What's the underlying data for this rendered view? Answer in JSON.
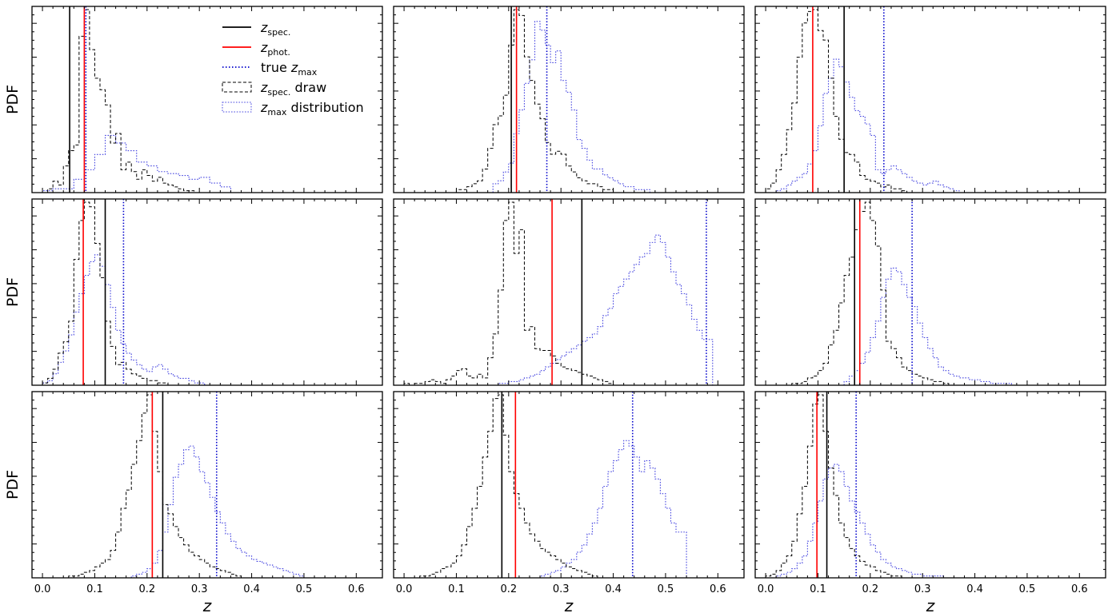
{
  "chart_data": {
    "type": "line",
    "layout": "3x3 grid of panels, shared x axis",
    "x_label": "z",
    "y_label": "PDF",
    "x_range": [
      -0.02,
      0.65
    ],
    "x_ticks": [
      0.0,
      0.1,
      0.2,
      0.3,
      0.4,
      0.5,
      0.6
    ],
    "x_tick_labels": [
      "0.0",
      "0.1",
      "0.2",
      "0.3",
      "0.4",
      "0.5",
      "0.6"
    ],
    "y_tick_labels_shown": false,
    "grid": false,
    "legend_panel": 0,
    "legend_position": "upper right",
    "legend": [
      {
        "key": "zspec",
        "prefix": "",
        "var": "z",
        "sub": "spec.",
        "suffix": "",
        "style": "solid",
        "color": "#000000"
      },
      {
        "key": "zphot",
        "prefix": "",
        "var": "z",
        "sub": "phot.",
        "suffix": "",
        "style": "solid",
        "color": "#ff0000"
      },
      {
        "key": "zmax_true",
        "prefix": "true ",
        "var": "z",
        "sub": "max",
        "suffix": "",
        "style": "dotted",
        "color": "#0000cc"
      },
      {
        "key": "draw",
        "prefix": "",
        "var": "z",
        "sub": "spec.",
        "suffix": " draw",
        "style": "dashed-box",
        "color": "#000000"
      },
      {
        "key": "zmax_dist",
        "prefix": "",
        "var": "z",
        "sub": "max",
        "suffix": " distribution",
        "style": "dotted-box",
        "color": "#0000cc"
      }
    ],
    "panels": [
      {
        "z_spec": 0.052,
        "z_phot": 0.08,
        "z_max_true": 0.083,
        "spec_draw": {
          "x0": 0.0,
          "w": 0.01,
          "counts": [
            0,
            2,
            6,
            4,
            14,
            22,
            25,
            82,
            96,
            75,
            60,
            54,
            46,
            26,
            31,
            12,
            16,
            11,
            7,
            12,
            9,
            6,
            8,
            5,
            4,
            3,
            2,
            1,
            1,
            0
          ]
        },
        "zmax_dist": {
          "x0": 0.0,
          "w": 0.02,
          "counts": [
            1,
            2,
            2,
            7,
            12,
            20,
            30,
            26,
            22,
            16,
            14,
            11,
            10,
            9,
            7,
            8,
            5,
            3,
            0
          ]
        }
      },
      {
        "z_spec": 0.205,
        "z_phot": 0.215,
        "z_max_true": 0.273,
        "spec_draw": {
          "x0": 0.1,
          "w": 0.01,
          "counts": [
            1,
            1,
            2,
            3,
            4,
            8,
            15,
            23,
            26,
            33,
            50,
            62,
            60,
            46,
            38,
            30,
            25,
            17,
            13,
            14,
            13,
            9,
            7,
            5,
            4,
            3,
            3,
            2,
            1,
            1,
            0
          ]
        },
        "zmax_dist": {
          "x0": 0.17,
          "w": 0.01,
          "counts": [
            3,
            4,
            7,
            10,
            20,
            28,
            37,
            45,
            58,
            55,
            50,
            44,
            48,
            38,
            34,
            28,
            18,
            15,
            11,
            8,
            8,
            6,
            5,
            4,
            3,
            2,
            2,
            1,
            1,
            1,
            0
          ]
        }
      },
      {
        "z_spec": 0.15,
        "z_phot": 0.09,
        "z_max_true": 0.226,
        "spec_draw": {
          "x0": 0.0,
          "w": 0.01,
          "counts": [
            2,
            5,
            12,
            20,
            33,
            47,
            71,
            89,
            95,
            96,
            85,
            80,
            60,
            40,
            28,
            21,
            20,
            16,
            9,
            7,
            6,
            5,
            3,
            4,
            2,
            2,
            1,
            0
          ]
        },
        "zmax_dist": {
          "x0": 0.02,
          "w": 0.01,
          "counts": [
            1,
            2,
            4,
            6,
            8,
            10,
            15,
            22,
            35,
            52,
            60,
            70,
            66,
            58,
            50,
            43,
            40,
            36,
            30,
            12,
            10,
            12,
            14,
            12,
            10,
            8,
            6,
            5,
            4,
            5,
            6,
            4,
            3,
            2,
            1,
            0
          ]
        }
      },
      {
        "z_spec": 0.12,
        "z_phot": 0.078,
        "z_max_true": 0.155,
        "spec_draw": {
          "x0": 0.0,
          "w": 0.01,
          "counts": [
            1,
            3,
            7,
            14,
            19,
            28,
            55,
            72,
            80,
            78,
            62,
            47,
            28,
            17,
            9,
            10,
            7,
            5,
            4,
            3,
            2,
            2,
            1,
            1,
            0
          ]
        },
        "zmax_dist": {
          "x0": 0.0,
          "w": 0.01,
          "counts": [
            1,
            2,
            5,
            10,
            15,
            22,
            32,
            40,
            48,
            54,
            57,
            52,
            44,
            34,
            24,
            18,
            14,
            11,
            9,
            7,
            6,
            8,
            9,
            7,
            5,
            4,
            3,
            3,
            2,
            1,
            1,
            0
          ]
        }
      },
      {
        "z_spec": 0.34,
        "z_phot": 0.283,
        "z_max_true": 0.578,
        "spec_draw": {
          "x0": 0.0,
          "w": 0.01,
          "counts": [
            1,
            0,
            1,
            1,
            2,
            3,
            2,
            1,
            3,
            5,
            8,
            9,
            5,
            4,
            6,
            4,
            15,
            28,
            52,
            90,
            100,
            72,
            85,
            30,
            32,
            20,
            19,
            19,
            16,
            12,
            10,
            9,
            8,
            7,
            6,
            5,
            4,
            3,
            2,
            1,
            0
          ]
        },
        "zmax_dist": {
          "x0": 0.18,
          "w": 0.01,
          "counts": [
            1,
            1,
            2,
            2,
            3,
            4,
            5,
            6,
            8,
            10,
            12,
            14,
            16,
            18,
            20,
            22,
            24,
            26,
            28,
            32,
            38,
            42,
            50,
            54,
            58,
            62,
            66,
            70,
            72,
            78,
            82,
            78,
            70,
            62,
            55,
            50,
            44,
            36,
            30,
            25,
            25,
            0
          ]
        }
      },
      {
        "z_spec": 0.17,
        "z_phot": 0.18,
        "z_max_true": 0.28,
        "spec_draw": {
          "x0": 0.05,
          "w": 0.01,
          "counts": [
            1,
            1,
            2,
            4,
            5,
            8,
            12,
            22,
            30,
            45,
            60,
            70,
            85,
            95,
            100,
            90,
            76,
            52,
            24,
            20,
            15,
            10,
            8,
            6,
            5,
            4,
            3,
            2,
            2,
            1,
            0
          ]
        },
        "zmax_dist": {
          "x0": 0.15,
          "w": 0.01,
          "counts": [
            2,
            5,
            8,
            12,
            18,
            26,
            35,
            48,
            58,
            64,
            62,
            55,
            48,
            43,
            34,
            26,
            20,
            15,
            10,
            8,
            6,
            5,
            4,
            4,
            3,
            3,
            2,
            2,
            1,
            1,
            1,
            1,
            0
          ]
        }
      },
      {
        "z_spec": 0.23,
        "z_phot": 0.21,
        "z_max_true": 0.333,
        "spec_draw": {
          "x0": 0.05,
          "w": 0.01,
          "counts": [
            1,
            1,
            2,
            3,
            4,
            6,
            8,
            10,
            15,
            25,
            38,
            48,
            62,
            75,
            90,
            100,
            80,
            58,
            40,
            35,
            28,
            22,
            18,
            14,
            12,
            10,
            8,
            6,
            5,
            4,
            3,
            2,
            1,
            0
          ]
        },
        "zmax_dist": {
          "x0": 0.17,
          "w": 0.01,
          "counts": [
            1,
            2,
            3,
            5,
            8,
            15,
            25,
            40,
            55,
            62,
            70,
            72,
            66,
            58,
            52,
            44,
            36,
            30,
            24,
            20,
            16,
            14,
            12,
            10,
            9,
            8,
            7,
            6,
            5,
            4,
            3,
            2,
            1,
            0
          ]
        }
      },
      {
        "z_spec": 0.187,
        "z_phot": 0.213,
        "z_max_true": 0.437,
        "spec_draw": {
          "x0": 0.03,
          "w": 0.01,
          "counts": [
            1,
            1,
            2,
            3,
            5,
            6,
            8,
            12,
            18,
            28,
            38,
            50,
            66,
            80,
            98,
            100,
            78,
            58,
            46,
            38,
            30,
            24,
            20,
            16,
            14,
            12,
            10,
            8,
            6,
            5,
            4,
            3,
            2,
            1,
            0
          ]
        },
        "zmax_dist": {
          "x0": 0.26,
          "w": 0.01,
          "counts": [
            1,
            2,
            3,
            4,
            6,
            8,
            10,
            14,
            18,
            24,
            30,
            38,
            50,
            58,
            64,
            70,
            75,
            72,
            66,
            58,
            64,
            60,
            54,
            46,
            38,
            30,
            25,
            25,
            0
          ]
        }
      },
      {
        "z_spec": 0.117,
        "z_phot": 0.098,
        "z_max_true": 0.173,
        "spec_draw": {
          "x0": 0.0,
          "w": 0.01,
          "counts": [
            1,
            2,
            4,
            8,
            12,
            20,
            35,
            50,
            72,
            95,
            100,
            80,
            60,
            45,
            30,
            22,
            16,
            12,
            9,
            7,
            6,
            4,
            3,
            2,
            1,
            1,
            0
          ]
        },
        "zmax_dist": {
          "x0": 0.02,
          "w": 0.01,
          "counts": [
            1,
            2,
            3,
            5,
            8,
            12,
            20,
            30,
            42,
            54,
            60,
            62,
            58,
            50,
            42,
            36,
            30,
            24,
            18,
            14,
            10,
            8,
            6,
            5,
            4,
            3,
            2,
            2,
            1,
            1,
            1,
            1,
            0
          ]
        }
      }
    ]
  }
}
